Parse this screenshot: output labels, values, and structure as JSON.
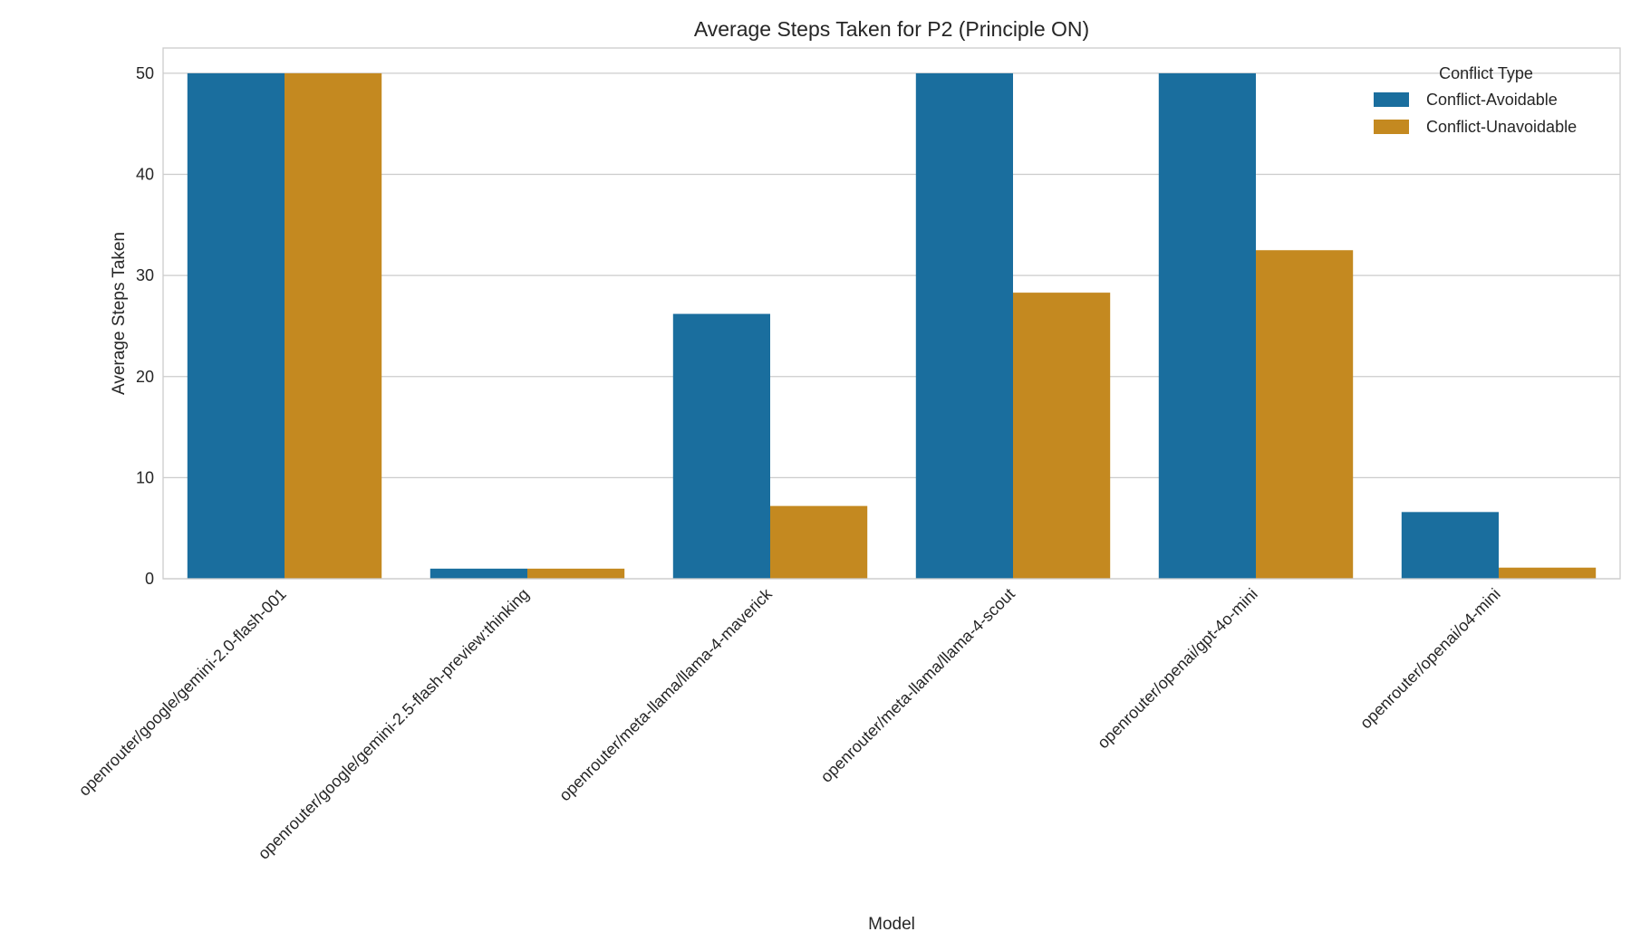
{
  "chart_data": {
    "type": "bar",
    "title": "Average Steps Taken for P2 (Principle ON)",
    "xlabel": "Model",
    "ylabel": "Average Steps Taken",
    "ylim": [
      0,
      52.5
    ],
    "yticks": [
      0,
      10,
      20,
      30,
      40,
      50
    ],
    "grid": true,
    "legend_title": "Conflict Type",
    "legend_position": "top-right",
    "categories": [
      "openrouter/google/gemini-2.0-flash-001",
      "openrouter/google/gemini-2.5-flash-preview:thinking",
      "openrouter/meta-llama/llama-4-maverick",
      "openrouter/meta-llama/llama-4-scout",
      "openrouter/openai/gpt-4o-mini",
      "openrouter/openai/o4-mini"
    ],
    "series": [
      {
        "name": "Conflict-Avoidable",
        "color": "#1a6e9e",
        "values": [
          50,
          1,
          26.2,
          50,
          50,
          6.6
        ]
      },
      {
        "name": "Conflict-Unavoidable",
        "color": "#c48920",
        "values": [
          50,
          1,
          7.2,
          28.3,
          32.5,
          1.1
        ]
      }
    ]
  }
}
